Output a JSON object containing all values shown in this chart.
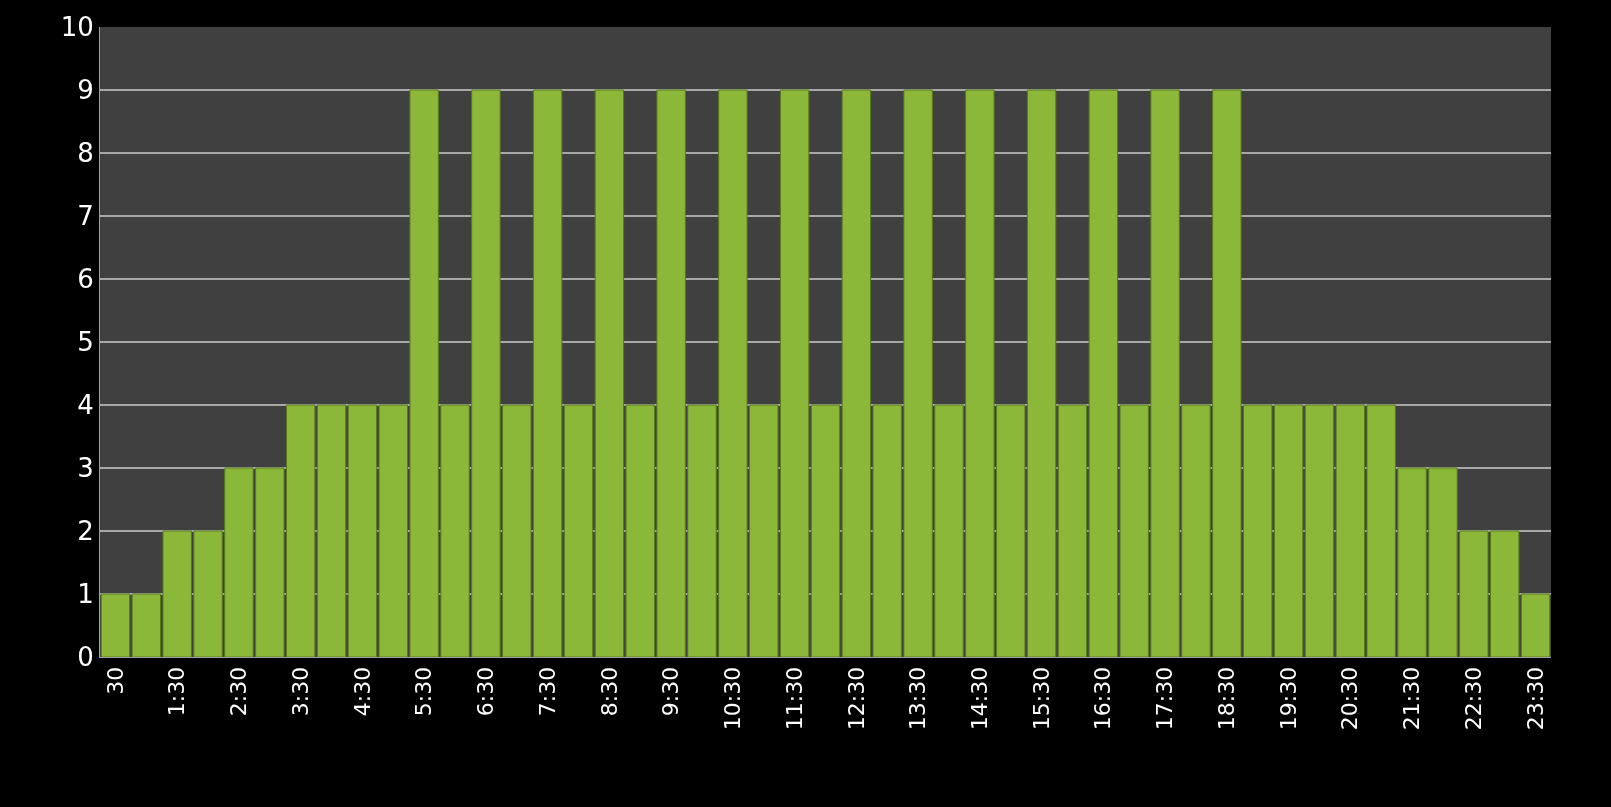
{
  "chart_data": {
    "type": "bar",
    "categories": [
      "30",
      null,
      "1:30",
      null,
      "2:30",
      null,
      "3:30",
      null,
      "4:30",
      null,
      "5:30",
      null,
      "6:30",
      null,
      "7:30",
      null,
      "8:30",
      null,
      "9:30",
      null,
      "10:30",
      null,
      "11:30",
      null,
      "12:30",
      null,
      "13:30",
      null,
      "14:30",
      null,
      "15:30",
      null,
      "16:30",
      null,
      "17:30",
      null,
      "18:30",
      null,
      "19:30",
      null,
      "20:30",
      null,
      "21:30",
      null,
      "22:30",
      null,
      "23:30"
    ],
    "values": [
      1,
      1,
      2,
      2,
      3,
      3,
      4,
      4,
      4,
      4,
      9,
      4,
      9,
      4,
      9,
      4,
      9,
      4,
      9,
      4,
      9,
      4,
      9,
      4,
      9,
      4,
      9,
      4,
      9,
      4,
      9,
      4,
      9,
      4,
      9,
      4,
      9,
      4,
      4,
      4,
      4,
      4,
      3,
      3,
      2,
      2,
      1
    ],
    "color": "#8cb83a",
    "ylim": [
      0,
      10
    ],
    "yticks": [
      0,
      1,
      2,
      3,
      4,
      5,
      6,
      7,
      8,
      9,
      10
    ],
    "grid": "y"
  }
}
